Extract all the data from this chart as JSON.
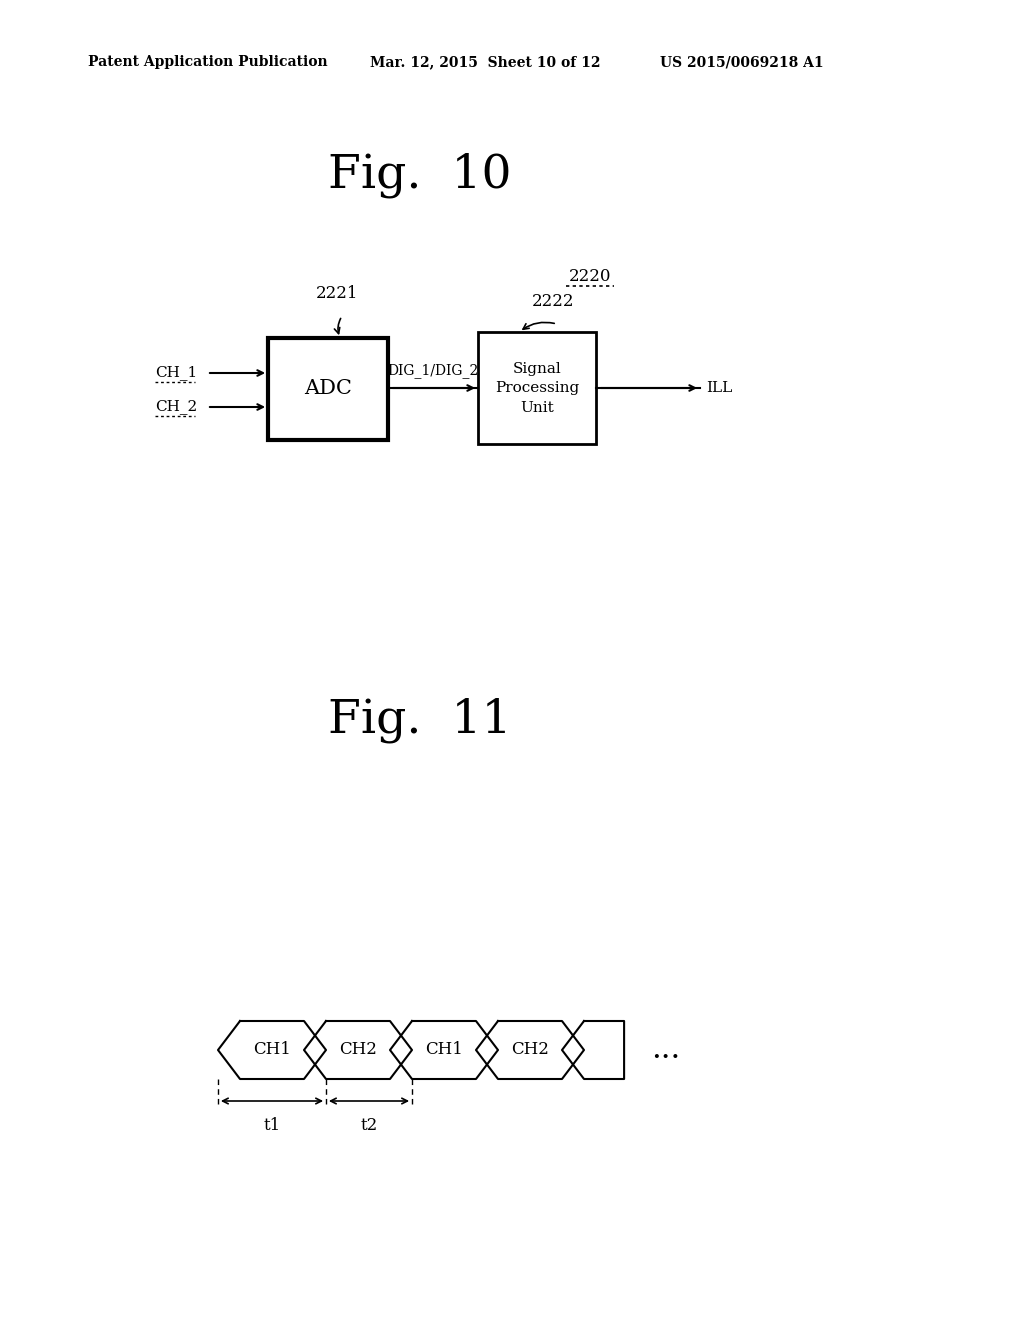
{
  "bg_color": "#ffffff",
  "header_left": "Patent Application Publication",
  "header_mid": "Mar. 12, 2015  Sheet 10 of 12",
  "header_right": "US 2015/0069218 A1",
  "fig10_title": "Fig.  10",
  "fig11_title": "Fig.  11",
  "label_2220": "2220",
  "label_2221": "2221",
  "label_2222": "2222",
  "label_adc": "ADC",
  "label_spu": "Signal\nProcessing\nUnit",
  "label_ch1": "CH_1",
  "label_ch2": "CH_2",
  "label_dig": "DIG_1/DIG_2",
  "label_ill": "ILL",
  "hex_labels": [
    "CH1",
    "CH2",
    "CH1",
    "CH2"
  ],
  "label_t1": "t1",
  "label_t2": "t2",
  "label_dots": "..."
}
